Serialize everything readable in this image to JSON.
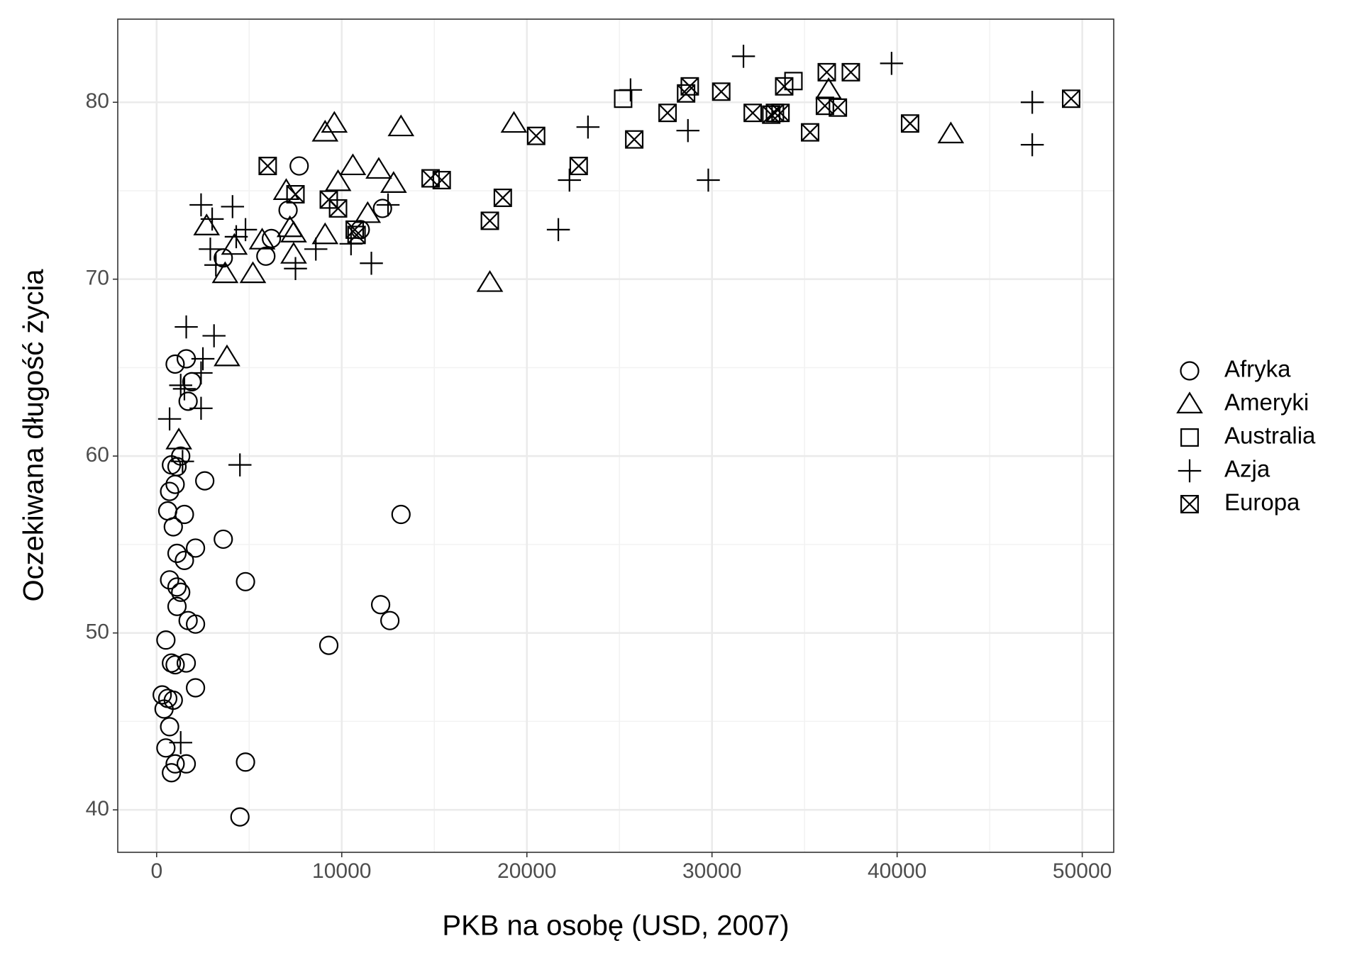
{
  "chart_data": {
    "type": "scatter",
    "x_label": "PKB na osobę (USD, 2007)",
    "y_label": "Oczekiwana długość życia",
    "xlim": [
      -2100,
      51700
    ],
    "ylim": [
      37.6,
      84.7
    ],
    "xticks": [
      0,
      10000,
      20000,
      30000,
      40000,
      50000
    ],
    "yticks": [
      40,
      50,
      60,
      70,
      80
    ],
    "grid": true,
    "legend": "right",
    "series": [
      {
        "name": "Afryka",
        "color": "#000000",
        "marker": "circle",
        "x": [
          1000,
          1600,
          1900,
          1700,
          800,
          1100,
          1300,
          2600,
          700,
          1000,
          600,
          1500,
          900,
          3600,
          1100,
          2100,
          1500,
          700,
          4800,
          1100,
          1300,
          1100,
          1700,
          2100,
          12100,
          12600,
          13200,
          9300,
          500,
          800,
          1000,
          1600,
          2100,
          300,
          600,
          900,
          400,
          700,
          500,
          1000,
          1600,
          800,
          4800,
          4500,
          7700,
          7100,
          12200,
          11000,
          5900,
          3600,
          6200
        ],
        "values": [
          65.2,
          65.5,
          64.2,
          63.1,
          59.5,
          59.4,
          60,
          58.6,
          58.0,
          58.4,
          56.9,
          56.7,
          56.0,
          55.3,
          54.5,
          54.8,
          54.1,
          53.0,
          52.9,
          52.6,
          52.3,
          51.5,
          50.7,
          50.5,
          51.6,
          50.7,
          56.7,
          49.3,
          49.6,
          48.3,
          48.2,
          48.3,
          46.9,
          46.5,
          46.3,
          46.2,
          45.7,
          44.7,
          43.5,
          42.6,
          42.6,
          42.1,
          42.7,
          39.6,
          76.4,
          73.9,
          74.0,
          72.8,
          71.3,
          71.2,
          72.3
        ]
      },
      {
        "name": "Ameryki",
        "color": "#000000",
        "marker": "triangle",
        "x": [
          9600,
          9100,
          13200,
          19300,
          42900,
          36300,
          10600,
          12000,
          9800,
          12800,
          7000,
          2700,
          7200,
          7400,
          9100,
          11400,
          5700,
          4200,
          7400,
          3700,
          5200,
          18000,
          3800,
          1200
        ],
        "values": [
          78.8,
          78.3,
          78.6,
          78.8,
          78.2,
          80.7,
          76.4,
          76.2,
          75.5,
          75.4,
          75.0,
          73.0,
          72.9,
          72.6,
          72.5,
          73.7,
          72.2,
          71.9,
          71.4,
          70.3,
          70.3,
          69.8,
          65.6,
          60.9
        ]
      },
      {
        "name": "Australia",
        "color": "#000000",
        "marker": "square",
        "x": [
          25200,
          34400
        ],
        "values": [
          80.2,
          81.2
        ]
      },
      {
        "name": "Azja",
        "color": "#000000",
        "marker": "plus",
        "x": [
          31700,
          39700,
          47300,
          47300,
          25600,
          23300,
          28700,
          22300,
          29800,
          21700,
          2400,
          4100,
          3000,
          4300,
          4800,
          2900,
          8600,
          10500,
          11600,
          7500,
          12500,
          1600,
          3100,
          2500,
          2400,
          1300,
          1500,
          2400,
          700,
          1400,
          4500,
          1300,
          3200
        ],
        "values": [
          82.6,
          82.2,
          80.0,
          77.6,
          80.7,
          78.6,
          78.4,
          75.6,
          75.6,
          72.8,
          74.2,
          74.1,
          73.4,
          72.4,
          72.8,
          71.7,
          71.7,
          72.0,
          70.9,
          70.6,
          74.2,
          67.3,
          66.8,
          65.5,
          64.7,
          64.0,
          63.8,
          62.7,
          62.1,
          59.7,
          59.5,
          43.8,
          70.8
        ]
      },
      {
        "name": "Europa",
        "color": "#000000",
        "marker": "boxx",
        "x": [
          6000,
          7500,
          9300,
          9800,
          10700,
          10800,
          14800,
          15400,
          18000,
          18700,
          20500,
          22800,
          25800,
          27600,
          28600,
          28800,
          30500,
          32200,
          33200,
          33400,
          33700,
          33900,
          35300,
          36200,
          36100,
          36800,
          37500,
          40700,
          49400
        ],
        "values": [
          76.4,
          74.8,
          74.5,
          74.0,
          72.8,
          72.5,
          75.7,
          75.6,
          73.3,
          74.6,
          78.1,
          76.4,
          77.9,
          79.4,
          80.5,
          80.9,
          80.6,
          79.4,
          79.3,
          79.4,
          79.4,
          80.9,
          78.3,
          81.7,
          79.8,
          79.7,
          81.7,
          78.8,
          80.2
        ]
      }
    ]
  }
}
